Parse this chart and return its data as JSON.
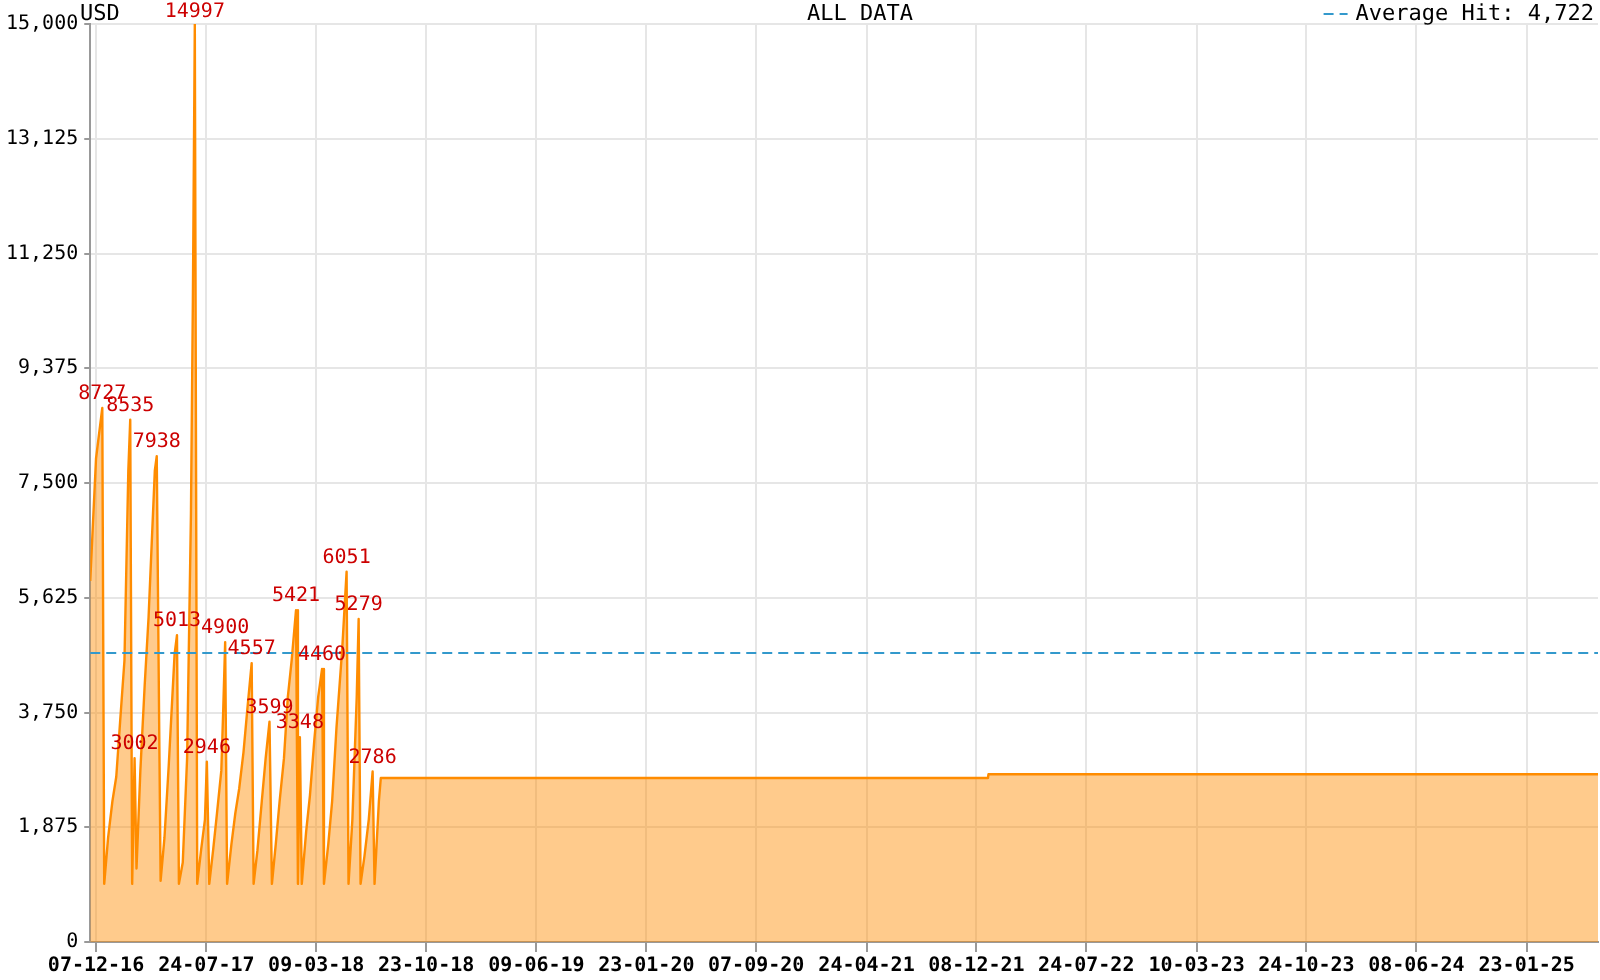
{
  "chart_data": {
    "type": "area",
    "title": "USD",
    "subtitle": "ALL DATA",
    "x": [
      "2016-11-25",
      "2016-12-07",
      "2016-12-20",
      "2016-12-24",
      "2017-01-01",
      "2017-01-10",
      "2017-01-18",
      "2017-01-26",
      "2017-02-04",
      "2017-02-12",
      "2017-02-16",
      "2017-02-20",
      "2017-02-25",
      "2017-03-01",
      "2017-03-09",
      "2017-03-18",
      "2017-03-26",
      "2017-04-08",
      "2017-04-12",
      "2017-04-20",
      "2017-04-28",
      "2017-05-07",
      "2017-05-19",
      "2017-05-24",
      "2017-05-28",
      "2017-06-05",
      "2017-06-14",
      "2017-06-22",
      "2017-06-26",
      "2017-06-30",
      "2017-07-05",
      "2017-07-13",
      "2017-07-21",
      "2017-07-25",
      "2017-07-30",
      "2017-08-07",
      "2017-08-15",
      "2017-08-24",
      "2017-08-28",
      "2017-09-01",
      "2017-09-05",
      "2017-09-14",
      "2017-09-22",
      "2017-09-30",
      "2017-10-09",
      "2017-10-17",
      "2017-10-26",
      "2017-10-30",
      "2017-11-07",
      "2017-11-16",
      "2017-11-24",
      "2017-12-02",
      "2017-12-07",
      "2017-12-15",
      "2017-12-23",
      "2018-01-01",
      "2018-01-09",
      "2018-01-17",
      "2018-01-26",
      "2018-01-30",
      "2018-02-03",
      "2018-02-07",
      "2018-02-16",
      "2018-02-24",
      "2018-03-05",
      "2018-03-13",
      "2018-03-21",
      "2018-03-25",
      "2018-04-03",
      "2018-04-11",
      "2018-04-20",
      "2018-05-02",
      "2018-05-11",
      "2018-05-15",
      "2018-05-23",
      "2018-06-01",
      "2018-06-05",
      "2018-06-09",
      "2018-06-17",
      "2018-06-26",
      "2018-07-04",
      "2018-07-08",
      "2018-07-17",
      "2018-07-21",
      "2022-01-01",
      "2022-01-02",
      "2025-06-20"
    ],
    "series": [
      {
        "color": "#ff8c00",
        "values": [
          5900,
          7900,
          8727,
          950,
          1700,
          2300,
          2700,
          3600,
          4600,
          7700,
          8535,
          950,
          3002,
          1200,
          2800,
          4200,
          5300,
          7700,
          7938,
          1000,
          1700,
          2900,
          4700,
          5013,
          950,
          1300,
          3000,
          7000,
          10500,
          14997,
          950,
          1500,
          2000,
          2946,
          950,
          1500,
          2100,
          2800,
          3800,
          4900,
          950,
          1600,
          2100,
          2500,
          3100,
          3800,
          4557,
          950,
          1500,
          2300,
          3000,
          3599,
          950,
          1600,
          2300,
          3000,
          4000,
          4600,
          5421,
          950,
          3348,
          950,
          1800,
          2400,
          3300,
          4000,
          4460,
          950,
          1600,
          2300,
          3500,
          4800,
          6051,
          950,
          2000,
          4000,
          5279,
          950,
          1400,
          2000,
          2786,
          950,
          2300,
          2680,
          2680,
          2740,
          2740
        ],
        "value_labels": [
          null,
          null,
          "8727",
          null,
          null,
          null,
          null,
          null,
          null,
          null,
          "8535",
          null,
          "3002",
          null,
          null,
          null,
          null,
          null,
          "7938",
          null,
          null,
          null,
          null,
          "5013",
          null,
          null,
          null,
          null,
          null,
          "14997",
          null,
          null,
          null,
          "2946",
          null,
          null,
          null,
          null,
          null,
          "4900",
          null,
          null,
          null,
          null,
          null,
          null,
          "4557",
          null,
          null,
          null,
          null,
          "3599",
          null,
          null,
          null,
          null,
          null,
          null,
          "5421",
          null,
          "3348",
          null,
          null,
          null,
          null,
          null,
          "4460",
          null,
          null,
          null,
          null,
          null,
          "6051",
          null,
          null,
          null,
          "5279",
          null,
          null,
          null,
          "2786",
          null,
          null,
          null,
          null,
          null,
          null
        ]
      }
    ],
    "xlim": [
      "2016-11-25",
      "2025-06-20"
    ],
    "xticks": [
      {
        "value": "2016-12-07",
        "label": "07-12-16"
      },
      {
        "value": "2017-07-24",
        "label": "24-07-17"
      },
      {
        "value": "2018-03-09",
        "label": "09-03-18"
      },
      {
        "value": "2018-10-23",
        "label": "23-10-18"
      },
      {
        "value": "2019-06-09",
        "label": "09-06-19"
      },
      {
        "value": "2020-01-23",
        "label": "23-01-20"
      },
      {
        "value": "2020-09-07",
        "label": "07-09-20"
      },
      {
        "value": "2021-04-24",
        "label": "24-04-21"
      },
      {
        "value": "2021-12-08",
        "label": "08-12-21"
      },
      {
        "value": "2022-07-24",
        "label": "24-07-22"
      },
      {
        "value": "2023-03-10",
        "label": "10-03-23"
      },
      {
        "value": "2023-10-24",
        "label": "24-10-23"
      },
      {
        "value": "2024-06-08",
        "label": "08-06-24"
      },
      {
        "value": "2025-01-23",
        "label": "23-01-25"
      }
    ],
    "ylim": [
      0,
      15000
    ],
    "yticks": [
      0,
      {
        "value": 1875,
        "label": "1,875"
      },
      {
        "value": 3750,
        "label": "3,750"
      },
      {
        "value": 5625,
        "label": "5,625"
      },
      {
        "value": 7500,
        "label": "7,500"
      },
      {
        "value": 9375,
        "label": "9,375"
      },
      {
        "value": 11250,
        "label": "11,250"
      },
      {
        "value": 13125,
        "label": "13,125"
      },
      {
        "value": 15000,
        "label": "15,000"
      }
    ],
    "ref_lines": [
      {
        "axis": "y",
        "value": 4722,
        "label": "Average Hit: 4,722",
        "color": "#3399cc",
        "line_style": "dashed"
      }
    ],
    "grid": true,
    "marker": "none",
    "line_style": "solid"
  }
}
